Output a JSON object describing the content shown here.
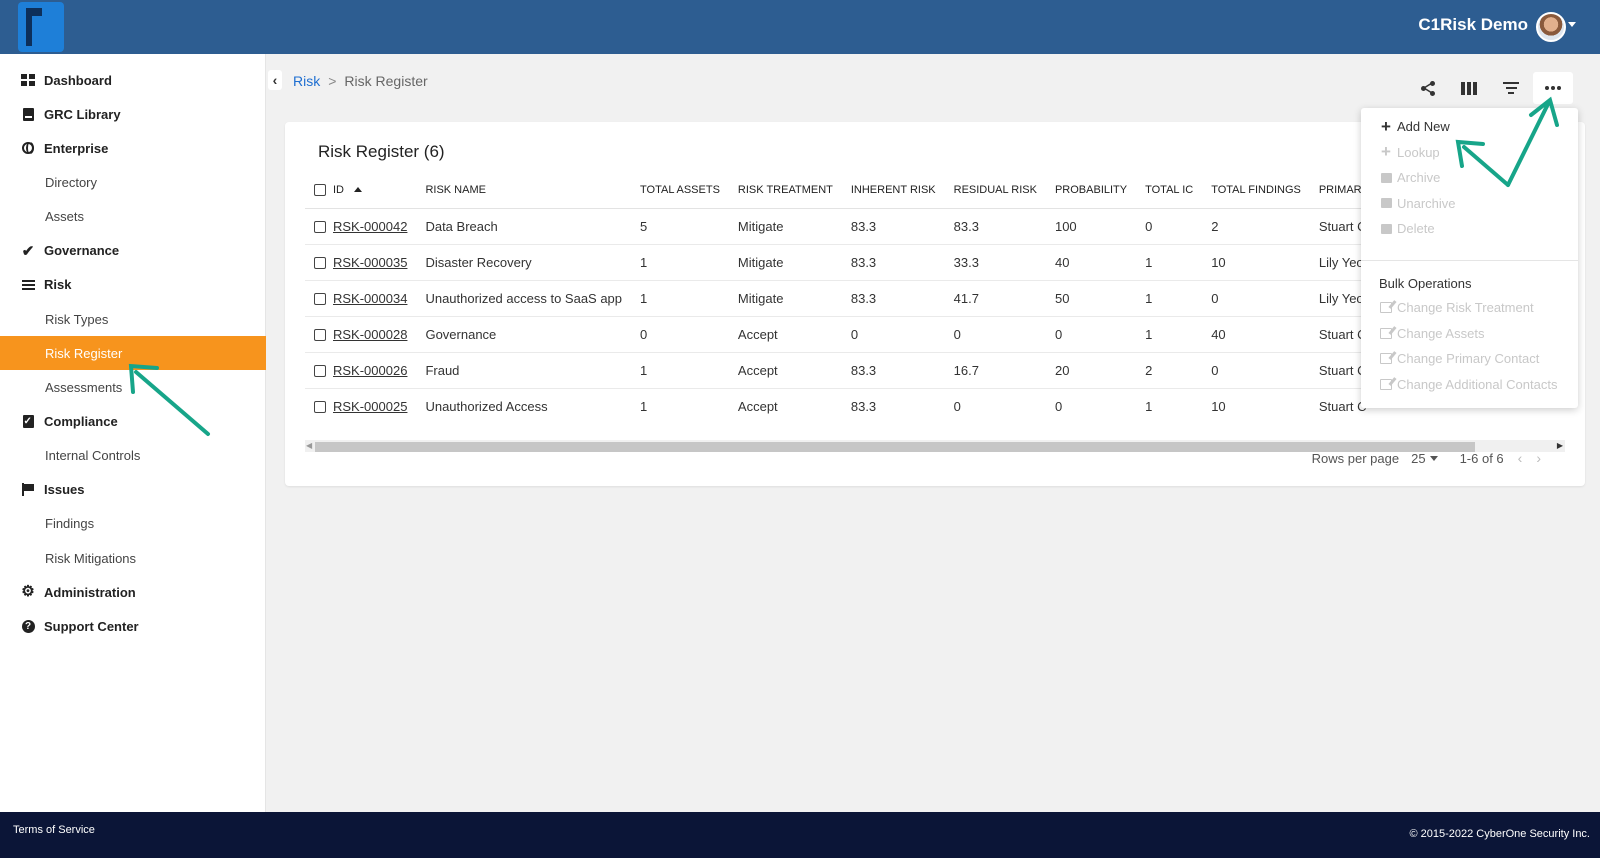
{
  "header": {
    "user_name": "C1Risk Demo",
    "colors": {
      "topbar": "#2d5d91",
      "accent": "#f7941d",
      "footer": "#0b1537"
    }
  },
  "sidebar": {
    "items": [
      {
        "label": "Dashboard",
        "level": "top",
        "icon": "dashboard-icon"
      },
      {
        "label": "GRC Library",
        "level": "top",
        "icon": "book-icon"
      },
      {
        "label": "Enterprise",
        "level": "top",
        "icon": "globe-icon"
      },
      {
        "label": "Directory",
        "level": "sub"
      },
      {
        "label": "Assets",
        "level": "sub"
      },
      {
        "label": "Governance",
        "level": "top",
        "icon": "checkmark-icon"
      },
      {
        "label": "Risk",
        "level": "top",
        "icon": "list-icon"
      },
      {
        "label": "Risk Types",
        "level": "sub"
      },
      {
        "label": "Risk Register",
        "level": "sub",
        "active": true
      },
      {
        "label": "Assessments",
        "level": "sub"
      },
      {
        "label": "Compliance",
        "level": "top",
        "icon": "clipboard-icon"
      },
      {
        "label": "Internal Controls",
        "level": "sub"
      },
      {
        "label": "Issues",
        "level": "top",
        "icon": "flag-icon"
      },
      {
        "label": "Findings",
        "level": "sub"
      },
      {
        "label": "Risk Mitigations",
        "level": "sub"
      },
      {
        "label": "Administration",
        "level": "top",
        "icon": "gear-icon"
      },
      {
        "label": "Support Center",
        "level": "top",
        "icon": "help-icon"
      }
    ]
  },
  "breadcrumb": {
    "parent": "Risk",
    "separator": ">",
    "current": "Risk Register"
  },
  "toolbar": {
    "icons": [
      "share-icon",
      "columns-icon",
      "filter-icon",
      "more-icon"
    ]
  },
  "card": {
    "title": "Risk Register (6)"
  },
  "table": {
    "columns": [
      "ID",
      "RISK NAME",
      "TOTAL ASSETS",
      "RISK TREATMENT",
      "INHERENT RISK",
      "RESIDUAL RISK",
      "PROBABILITY",
      "TOTAL IC",
      "TOTAL FINDINGS",
      "PRIMARY"
    ],
    "rows": [
      [
        "RSK-000042",
        "Data Breach",
        "5",
        "Mitigate",
        "83.3",
        "83.3",
        "100",
        "0",
        "2",
        "Stuart C"
      ],
      [
        "RSK-000035",
        "Disaster Recovery",
        "1",
        "Mitigate",
        "83.3",
        "33.3",
        "40",
        "1",
        "10",
        "Lily Yeoh"
      ],
      [
        "RSK-000034",
        "Unauthorized access to SaaS app",
        "1",
        "Mitigate",
        "83.3",
        "41.7",
        "50",
        "1",
        "0",
        "Lily Yeoh"
      ],
      [
        "RSK-000028",
        "Governance",
        "0",
        "Accept",
        "0",
        "0",
        "0",
        "1",
        "40",
        "Stuart C"
      ],
      [
        "RSK-000026",
        "Fraud",
        "1",
        "Accept",
        "83.3",
        "16.7",
        "20",
        "2",
        "0",
        "Stuart C"
      ],
      [
        "RSK-000025",
        "Unauthorized Access",
        "1",
        "Accept",
        "83.3",
        "0",
        "0",
        "1",
        "10",
        "Stuart C"
      ]
    ]
  },
  "pagination": {
    "rows_per_page_label": "Rows per page",
    "rows_per_page_value": "25",
    "range": "1-6 of 6"
  },
  "menu": {
    "items": [
      {
        "label": "Add New",
        "enabled": true,
        "icon": "plus-icon"
      },
      {
        "label": "Lookup",
        "enabled": false,
        "icon": "plus-icon"
      },
      {
        "label": "Archive",
        "enabled": false,
        "icon": "archive-icon"
      },
      {
        "label": "Unarchive",
        "enabled": false,
        "icon": "archive-icon"
      },
      {
        "label": "Delete",
        "enabled": false,
        "icon": "trash-icon"
      }
    ],
    "bulk_heading": "Bulk Operations",
    "bulk_items": [
      {
        "label": "Change Risk Treatment",
        "enabled": false,
        "icon": "edit-icon"
      },
      {
        "label": "Change Assets",
        "enabled": false,
        "icon": "edit-icon"
      },
      {
        "label": "Change Primary Contact",
        "enabled": false,
        "icon": "edit-icon"
      },
      {
        "label": "Change Additional Contacts",
        "enabled": false,
        "icon": "edit-icon"
      }
    ]
  },
  "footer": {
    "terms": "Terms of Service",
    "copyright": "© 2015-2022 CyberOne Security Inc."
  }
}
